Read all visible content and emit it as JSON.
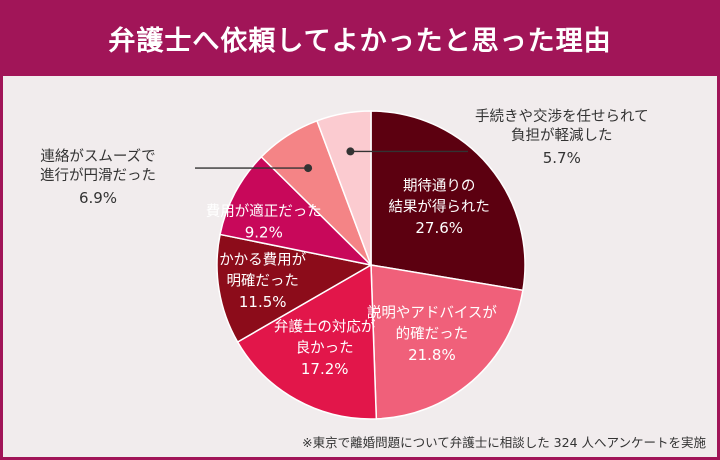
{
  "header": {
    "title": "弁護士へ依頼してよかったと思った理由"
  },
  "chart_data": {
    "type": "pie",
    "title": "弁護士へ依頼してよかったと思った理由",
    "unit": "%",
    "slices": [
      {
        "label": [
          "期待通りの",
          "結果が得られた"
        ],
        "value": 27.6,
        "value_label": "27.6%",
        "color": "#5c0010",
        "label_position": "inside"
      },
      {
        "label": [
          "説明やアドバイスが",
          "的確だった"
        ],
        "value": 21.8,
        "value_label": "21.8%",
        "color": "#f0607a",
        "label_position": "inside"
      },
      {
        "label": [
          "弁護士の対応が",
          "良かった"
        ],
        "value": 17.2,
        "value_label": "17.2%",
        "color": "#e2164a",
        "label_position": "inside"
      },
      {
        "label": [
          "かかる費用が",
          "明確だった"
        ],
        "value": 11.5,
        "value_label": "11.5%",
        "color": "#8c0c1a",
        "label_position": "inside"
      },
      {
        "label": [
          "費用が適正だった"
        ],
        "value": 9.2,
        "value_label": "9.2%",
        "color": "#c8085a",
        "label_position": "inside"
      },
      {
        "label": [
          "連絡がスムーズで",
          "進行が円滑だった"
        ],
        "value": 6.9,
        "value_label": "6.9%",
        "color": "#f48486",
        "label_position": "outside-left"
      },
      {
        "label": [
          "手続きや交渉を任せられて",
          "負担が軽減した"
        ],
        "value": 5.7,
        "value_label": "5.7%",
        "color": "#fbcbd0",
        "label_position": "outside-right"
      }
    ],
    "legend": "none"
  },
  "footnote": "※東京で離婚問題について弁護士に相談した 324 人へアンケートを実施"
}
